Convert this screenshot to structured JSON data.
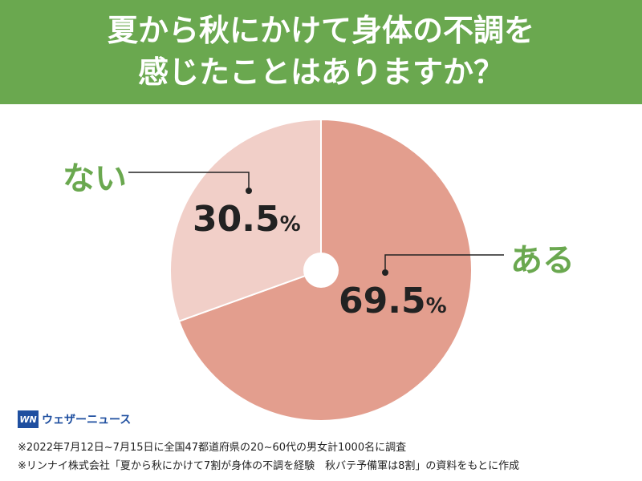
{
  "header": {
    "line1": "夏から秋にかけて身体の不調を",
    "line2": "感じたことはありますか？"
  },
  "chart_data": {
    "type": "pie",
    "title": "夏から秋にかけて身体の不調を感じたことはありますか？",
    "slices": [
      {
        "label": "ある",
        "value": 69.5,
        "display": "69.5",
        "color": "#e39e8e"
      },
      {
        "label": "ない",
        "value": 30.5,
        "display": "30.5",
        "color": "#f1cfc8"
      }
    ],
    "unit": "%"
  },
  "logo": {
    "mark": "WN",
    "name": "ウェザーニュース"
  },
  "notes": [
    "※2022年7月12日~7月15日に全国47都道府県の20~60代の男女計1000名に調査",
    "※リンナイ株式会社「夏から秋にかけて7割が身体の不調を経験　秋バテ予備軍は8割」の資料をもとに作成"
  ],
  "colors": {
    "header": "#6aa84f",
    "label": "#6aa84f"
  }
}
